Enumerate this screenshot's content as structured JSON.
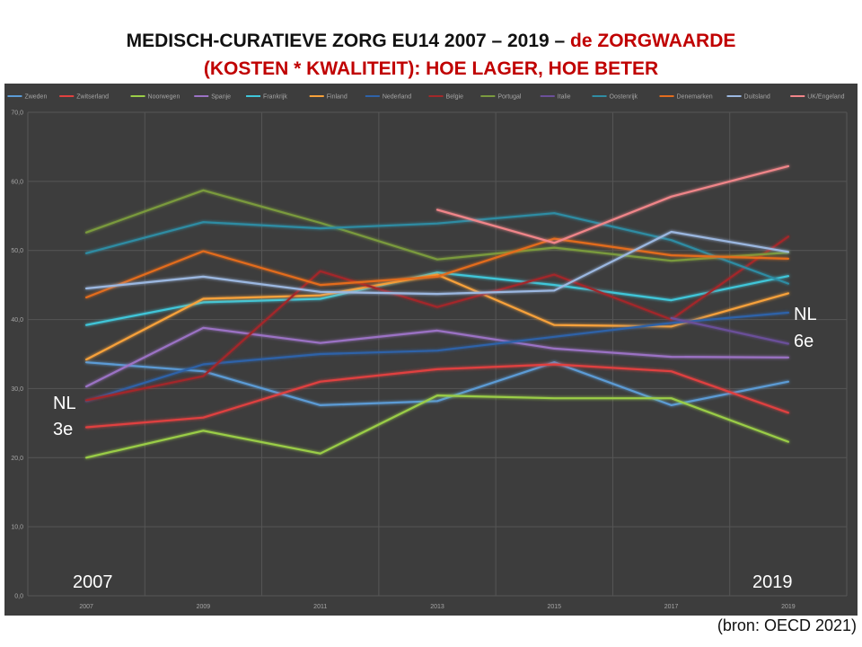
{
  "title": {
    "part1": "MEDISCH-CURATIEVE ZORG EU14 2007 – 2019 – ",
    "part2": "de ZORGWAARDE",
    "line2": "(KOSTEN * KWALITEIT): HOE LAGER, HOE BETER"
  },
  "source": "(bron: OECD 2021)",
  "annotations": {
    "nl_left_1": "NL",
    "nl_left_2": "3e",
    "nl_right_1": "NL",
    "nl_right_2": "6e",
    "year_left": "2007",
    "year_right": "2019"
  },
  "colors": {
    "chart_bg": "#3d3d3d",
    "grid": "#565656",
    "axis_text": "#a6a6a6",
    "title_red": "#c00000"
  },
  "chart_data": {
    "type": "line",
    "title": "",
    "xlabel": "",
    "ylabel": "",
    "x": [
      "2007",
      "2009",
      "2011",
      "2013",
      "2015",
      "2017",
      "2019"
    ],
    "ylim": [
      0,
      70
    ],
    "yticks": [
      "0,0",
      "10,0",
      "20,0",
      "30,0",
      "40,0",
      "50,0",
      "60,0",
      "70,0"
    ],
    "grid": true,
    "legend_position": "top",
    "series": [
      {
        "name": "Zweden",
        "color": "#5b9bd5",
        "values": [
          33.8,
          32.5,
          27.6,
          28.2,
          33.8,
          27.6,
          31.0
        ]
      },
      {
        "name": "Zwitserland",
        "color": "#e0413f",
        "values": [
          24.4,
          25.8,
          31.0,
          32.8,
          33.5,
          32.5,
          26.5
        ]
      },
      {
        "name": "Noorwegen",
        "color": "#9acd47",
        "values": [
          20.0,
          23.9,
          20.6,
          29.0,
          28.6,
          28.6,
          22.3
        ]
      },
      {
        "name": "Spanje",
        "color": "#9b72c4",
        "values": [
          30.3,
          38.8,
          36.6,
          38.4,
          35.8,
          34.6,
          34.5
        ]
      },
      {
        "name": "Frankrijk",
        "color": "#3fc6d9",
        "values": [
          39.2,
          42.5,
          43.0,
          46.8,
          45.0,
          42.8,
          46.3
        ]
      },
      {
        "name": "Finland",
        "color": "#f7a13a",
        "values": [
          34.2,
          43.0,
          43.5,
          46.5,
          39.2,
          39.0,
          43.8
        ]
      },
      {
        "name": "Nederland",
        "color": "#2e62a8",
        "values": [
          28.2,
          33.5,
          35.0,
          35.5,
          37.5,
          39.5,
          41.0
        ]
      },
      {
        "name": "Belgie",
        "color": "#a3282a",
        "values": [
          28.3,
          31.8,
          47.0,
          41.8,
          46.5,
          40.0,
          52.0
        ]
      },
      {
        "name": "Portugal",
        "color": "#7a9a3e",
        "values": [
          52.6,
          58.7,
          54.0,
          48.7,
          50.4,
          48.5,
          49.7
        ]
      },
      {
        "name": "Italie",
        "color": "#6b4f99",
        "values": [
          null,
          null,
          null,
          null,
          null,
          40.2,
          36.5
        ]
      },
      {
        "name": "Oostenrijk",
        "color": "#2f8ca3",
        "values": [
          49.6,
          54.1,
          53.2,
          53.9,
          55.4,
          51.5,
          45.2
        ]
      },
      {
        "name": "Denemarken",
        "color": "#e36c1e",
        "values": [
          43.2,
          49.9,
          45.0,
          46.2,
          51.7,
          49.3,
          48.8
        ]
      },
      {
        "name": "Duitsland",
        "color": "#9bb7e0",
        "values": [
          44.5,
          46.2,
          44.0,
          43.7,
          44.2,
          52.7,
          49.8
        ]
      },
      {
        "name": "UK/Engeland",
        "color": "#f08589",
        "values": [
          null,
          null,
          null,
          55.9,
          51.1,
          57.8,
          62.2
        ]
      }
    ]
  }
}
